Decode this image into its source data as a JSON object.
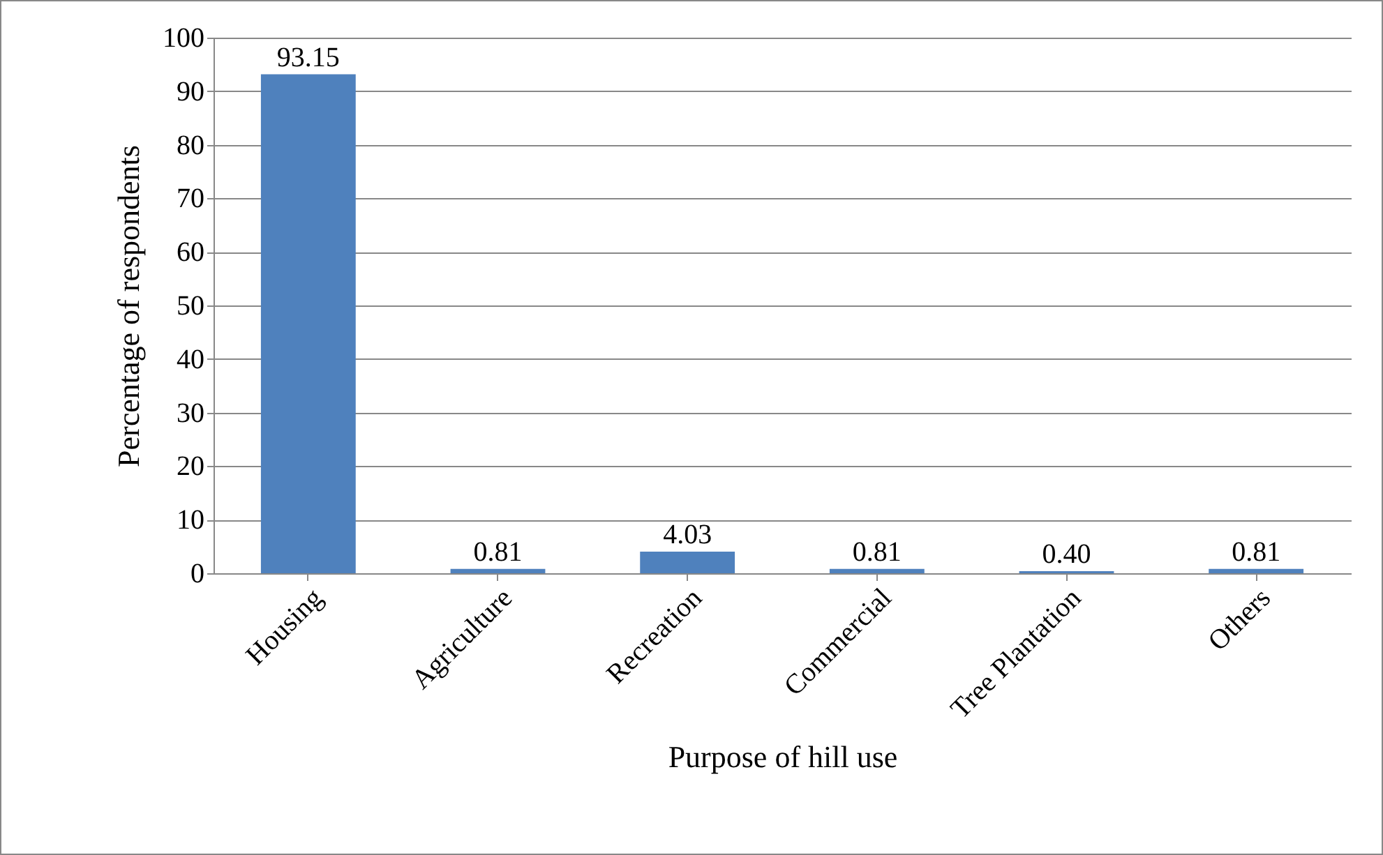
{
  "chart_data": {
    "type": "bar",
    "xlabel": "Purpose of hill use",
    "ylabel": "Percentage of respondents",
    "categories": [
      "Housing",
      "Agriculture",
      "Recreation",
      "Commercial",
      "Tree Plantation",
      "Others"
    ],
    "values": [
      93.15,
      0.81,
      4.03,
      0.81,
      0.4,
      0.81
    ],
    "value_labels": [
      "93.15",
      "0.81",
      "4.03",
      "0.81",
      "0.40",
      "0.81"
    ],
    "color": "#4f81bd",
    "ylim": [
      0,
      100
    ],
    "yticks": [
      0,
      10,
      20,
      30,
      40,
      50,
      60,
      70,
      80,
      90,
      100
    ],
    "grid": "y"
  }
}
